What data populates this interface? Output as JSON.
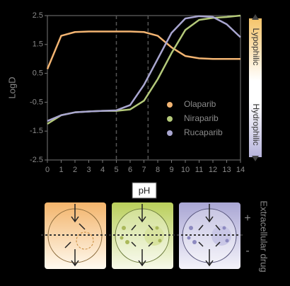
{
  "chart_data": {
    "type": "line",
    "y_label": "LogD",
    "x_label": "pH",
    "x": [
      0,
      1,
      2,
      3,
      4,
      5,
      6,
      7,
      8,
      9,
      10,
      11,
      12,
      13,
      14
    ],
    "series": [
      {
        "name": "Olaparib",
        "color": "#f2b472",
        "values": [
          0.65,
          1.8,
          1.93,
          1.95,
          1.95,
          1.95,
          1.95,
          1.93,
          1.8,
          1.4,
          1.1,
          1.02,
          1.0,
          1.0,
          1.0
        ]
      },
      {
        "name": "Niraparib",
        "color": "#b4c97a",
        "values": [
          -1.25,
          -0.95,
          -0.85,
          -0.82,
          -0.8,
          -0.8,
          -0.75,
          -0.45,
          0.3,
          1.2,
          2.0,
          2.35,
          2.42,
          2.45,
          2.5
        ]
      },
      {
        "name": "Rucaparib",
        "color": "#a9a6d0",
        "values": [
          -1.15,
          -0.95,
          -0.85,
          -0.82,
          -0.8,
          -0.78,
          -0.6,
          0.1,
          1.0,
          1.9,
          2.4,
          2.48,
          2.45,
          2.2,
          1.75
        ]
      }
    ],
    "xlim": [
      0,
      14
    ],
    "xticks": [
      0,
      1,
      2,
      3,
      4,
      5,
      6,
      7,
      8,
      9,
      10,
      11,
      12,
      13,
      14
    ],
    "ylim": [
      -2.5,
      2.5
    ],
    "yticks": [
      -2.5,
      -1.5,
      -0.5,
      0.5,
      1.5,
      2.5
    ],
    "vlines": [
      5,
      7.3
    ],
    "legend": "center-right",
    "colorbar_labels": [
      "Lypophilic",
      "Hydrophilic"
    ]
  },
  "diagram": {
    "plus": "+",
    "minus": "-",
    "label": "Extracellular drug"
  }
}
